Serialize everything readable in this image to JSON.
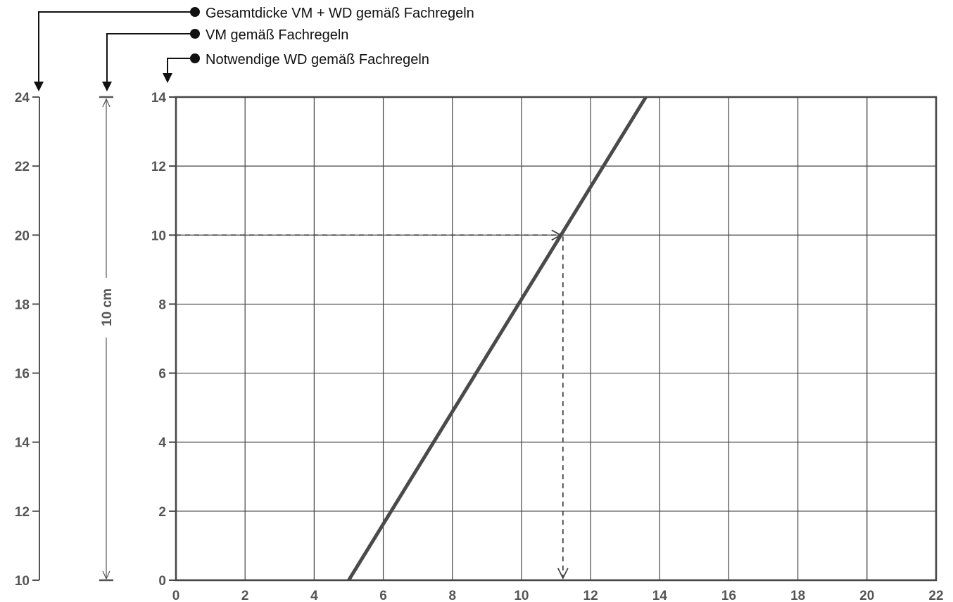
{
  "chart_data": {
    "type": "line",
    "legend": [
      "Gesamtdicke VM + WD gemäß Fachregeln",
      "VM gemäß Fachregeln",
      "Notwendige WD gemäß Fachregeln"
    ],
    "x_ticks": [
      "0",
      "2",
      "4",
      "6",
      "8",
      "10",
      "12",
      "14",
      "16",
      "18",
      "20",
      "22"
    ],
    "y_ticks_wd": [
      "0",
      "2",
      "4",
      "6",
      "8",
      "10",
      "12",
      "14"
    ],
    "y_ticks_total": [
      "10",
      "12",
      "14",
      "16",
      "18",
      "20",
      "22",
      "24"
    ],
    "vm_label": "10 cm",
    "xlim": [
      0,
      22
    ],
    "ylim": [
      0,
      14
    ],
    "ylim_total": [
      10,
      24
    ],
    "grid": true,
    "series": [
      {
        "x": [
          5.0,
          13.6
        ],
        "y": [
          0,
          14
        ]
      }
    ],
    "example": {
      "x": 11.2,
      "y": 10
    },
    "colors": {
      "line": "#4a4a4a",
      "grid": "#444444",
      "dashed": "#444444",
      "text": "#555555"
    }
  }
}
